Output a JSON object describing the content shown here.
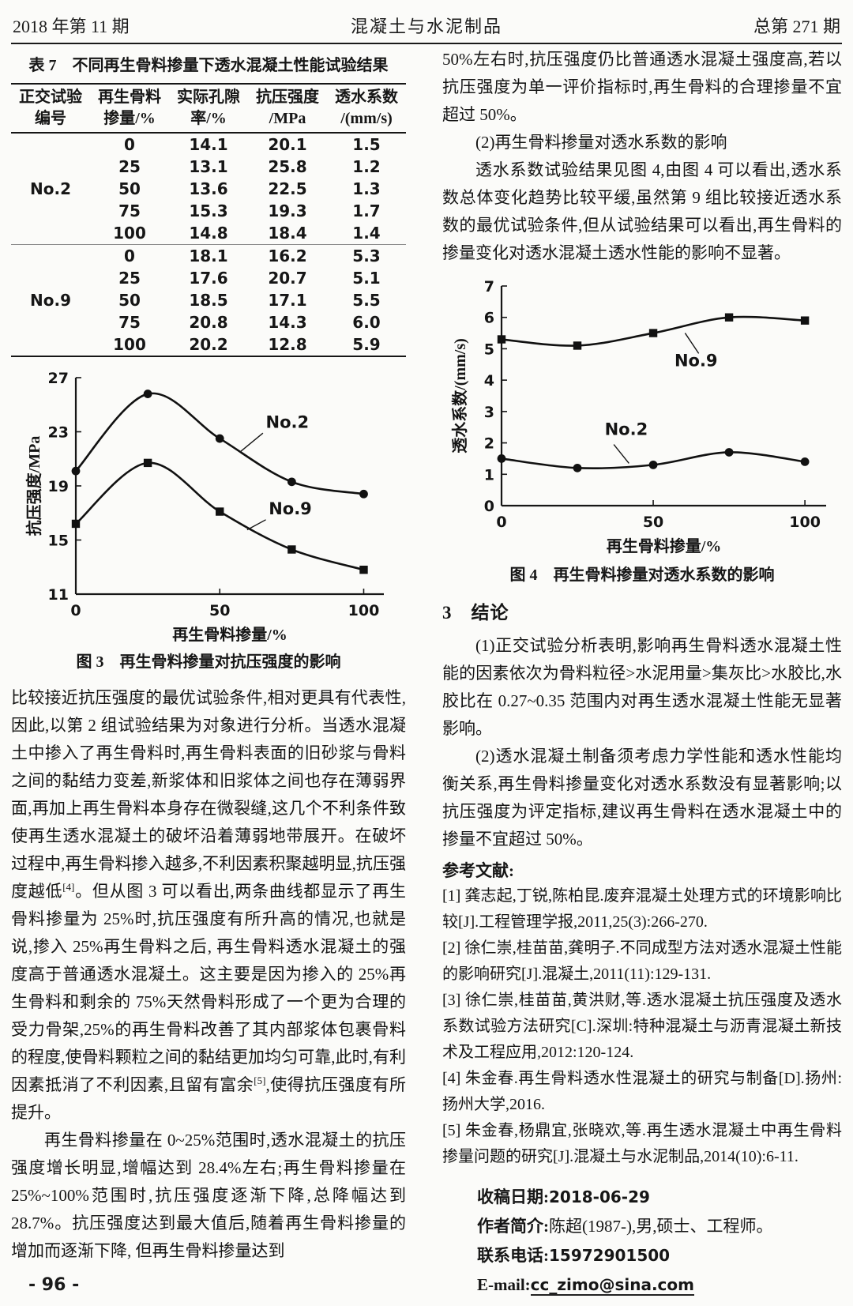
{
  "header": {
    "left": "2018 年第 11 期",
    "center": "混凝土与水泥制品",
    "right": "总第 271 期"
  },
  "footer": {
    "page_number": "- 96 -"
  },
  "table7": {
    "title": "表 7　不同再生骨料掺量下透水混凝土性能试验结果",
    "col_headers": [
      [
        "正交试验",
        "编号"
      ],
      [
        "再生骨料",
        "掺量/%"
      ],
      [
        "实际孔隙",
        "率/%"
      ],
      [
        "抗压强度",
        "/MPa"
      ],
      [
        "透水系数",
        "/(mm/s)"
      ]
    ],
    "groups": [
      {
        "id": "No.2",
        "rows": [
          [
            "0",
            "14.1",
            "20.1",
            "1.5"
          ],
          [
            "25",
            "13.1",
            "25.8",
            "1.2"
          ],
          [
            "50",
            "13.6",
            "22.5",
            "1.3"
          ],
          [
            "75",
            "15.3",
            "19.3",
            "1.7"
          ],
          [
            "100",
            "14.8",
            "18.4",
            "1.4"
          ]
        ]
      },
      {
        "id": "No.9",
        "rows": [
          [
            "0",
            "18.1",
            "16.2",
            "5.3"
          ],
          [
            "25",
            "17.6",
            "20.7",
            "5.1"
          ],
          [
            "50",
            "18.5",
            "17.1",
            "5.5"
          ],
          [
            "75",
            "20.8",
            "14.3",
            "6.0"
          ],
          [
            "100",
            "20.2",
            "12.8",
            "5.9"
          ]
        ]
      }
    ]
  },
  "chart_data": [
    {
      "id": "fig3",
      "type": "line",
      "x": [
        0,
        25,
        50,
        75,
        100
      ],
      "series": [
        {
          "name": "No.2",
          "marker": "circle",
          "values": [
            20.1,
            25.8,
            22.5,
            19.3,
            18.4
          ]
        },
        {
          "name": "No.9",
          "marker": "square",
          "values": [
            16.2,
            20.7,
            17.1,
            14.3,
            12.8
          ]
        }
      ],
      "xlabel": "再生骨料掺量/%",
      "ylabel": "抗压强度/MPa",
      "xlim": [
        0,
        107
      ],
      "ylim": [
        11,
        27
      ],
      "yticks": [
        11,
        15,
        19,
        23,
        27
      ],
      "xticks": [
        0,
        50,
        100
      ],
      "grid": false,
      "annotations": [
        {
          "text": "No.2",
          "tx": 66,
          "ty": 23.3,
          "lx1": 57,
          "ly1": 21.5,
          "lx2": 65,
          "ly2": 22.9
        },
        {
          "text": "No.9",
          "tx": 67,
          "ty": 16.9,
          "lx1": 59.5,
          "ly1": 15.75,
          "lx2": 66,
          "ly2": 16.5
        }
      ],
      "caption": "图 3　再生骨料掺量对抗压强度的影响"
    },
    {
      "id": "fig4",
      "type": "line",
      "x": [
        0,
        25,
        50,
        75,
        100
      ],
      "series": [
        {
          "name": "No.9",
          "marker": "square",
          "values": [
            5.3,
            5.1,
            5.5,
            6.0,
            5.9
          ]
        },
        {
          "name": "No.2",
          "marker": "circle",
          "values": [
            1.5,
            1.2,
            1.3,
            1.7,
            1.4
          ]
        }
      ],
      "xlabel": "再生骨料掺量/%",
      "ylabel": "透水系数/(mm/s)",
      "xlim": [
        0,
        107
      ],
      "ylim": [
        0,
        7
      ],
      "yticks": [
        0,
        1,
        2,
        3,
        4,
        5,
        6,
        7
      ],
      "xticks": [
        0,
        50,
        100
      ],
      "grid": false,
      "annotations": [
        {
          "text": "No.9",
          "tx": 57,
          "ty": 4.45,
          "lx1": 60.5,
          "ly1": 5.5,
          "lx2": 65,
          "ly2": 4.85
        },
        {
          "text": "No.2",
          "tx": 34,
          "ty": 2.25,
          "lx1": 37,
          "ly1": 1.95,
          "lx2": 42,
          "ly2": 1.35
        }
      ],
      "caption": "图 4　再生骨料掺量对透水系数的影响"
    }
  ],
  "left_column": {
    "para1": {
      "t1": "比较接近抗压强度的最优试验条件,相对更具有代表性,因此,以第 2 组试验结果为对象进行分析。当透水混凝土中掺入了再生骨料时,再生骨料表面的旧砂浆与骨料之间的黏结力变差,新浆体和旧浆体之间也存在薄弱界面,再加上再生骨料本身存在微裂缝,这几个不利条件致使再生透水混凝土的破坏沿着薄弱地带展开。在破坏过程中,再生骨料掺入越多,不利因素积聚越明显,抗压强度越低",
      "sup1": "[4]",
      "t2": "。但从图 3 可以看出,两条曲线都显示了再生骨料掺量为 25%时,抗压强度有所升高的情况,也就是说,掺入 25%再生骨料之后, 再生骨料透水混凝土的强度高于普通透水混凝土。这主要是因为掺入的 25%再生骨料和剩余的 75%天然骨料形成了一个更为合理的受力骨架,25%的再生骨料改善了其内部浆体包裹骨料的程度,使骨料颗粒之间的黏结更加均匀可靠,此时,有利因素抵消了不利因素,且留有富余",
      "sup2": "[5]",
      "t3": ",使得抗压强度有所提升。"
    },
    "para2": "再生骨料掺量在 0~25%范围时,透水混凝土的抗压强度增长明显,增幅达到 28.4%左右;再生骨料掺量在 25%~100%范围时,抗压强度逐渐下降,总降幅达到 28.7%。抗压强度达到最大值后,随着再生骨料掺量的增加而逐渐下降, 但再生骨料掺量达到"
  },
  "right_column": {
    "para1": "50%左右时,抗压强度仍比普通透水混凝土强度高,若以抗压强度为单一评价指标时,再生骨料的合理掺量不宜超过 50%。",
    "para2": "(2)再生骨料掺量对透水系数的影响",
    "para3": "透水系数试验结果见图 4,由图 4 可以看出,透水系数总体变化趋势比较平缓,虽然第 9 组比较接近透水系数的最优试验条件,但从试验结果可以看出,再生骨料的掺量变化对透水混凝土透水性能的影响不显著。",
    "section3": {
      "heading": "3　结论",
      "para1": "(1)正交试验分析表明,影响再生骨料透水混凝土性能的因素依次为骨料粒径>水泥用量>集灰比>水胶比,水胶比在 0.27~0.35 范围内对再生透水混凝土性能无显著影响。",
      "para2": "(2)透水混凝土制备须考虑力学性能和透水性能均衡关系,再生骨料掺量变化对透水系数没有显著影响;以抗压强度为评定指标,建议再生骨料在透水混凝土中的掺量不宜超过 50%。"
    },
    "references": {
      "heading": "参考文献:",
      "items": [
        "[1] 龚志起,丁锐,陈柏昆.废弃混凝土处理方式的环境影响比较[J].工程管理学报,2011,25(3):266-270.",
        "[2] 徐仁崇,桂苗苗,龚明子.不同成型方法对透水混凝土性能的影响研究[J].混凝土,2011(11):129-131.",
        "[3] 徐仁崇,桂苗苗,黄洪财,等.透水混凝土抗压强度及透水系数试验方法研究[C].深圳:特种混凝土与沥青混凝土新技术及工程应用,2012:120-124.",
        "[4] 朱金春.再生骨料透水性混凝土的研究与制备[D].扬州:扬州大学,2016.",
        "[5] 朱金春,杨鼎宜,张晓欢,等.再生透水混凝土中再生骨料掺量问题的研究[J].混凝土与水泥制品,2014(10):6-11."
      ]
    },
    "info": {
      "received_label": "收稿日期:",
      "received_value": "2018-06-29",
      "author_label": "作者简介:",
      "author_value": "陈超(1987-),男,硕士、工程师。",
      "phone_label": "联系电话:",
      "phone_value": "15972901500",
      "email_label": "E-mail:",
      "email_value": "cc_zimo@sina.com"
    }
  }
}
